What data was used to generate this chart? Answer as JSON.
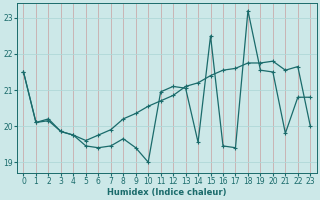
{
  "xlabel": "Humidex (Indice chaleur)",
  "xlim": [
    -0.5,
    23.5
  ],
  "ylim": [
    18.7,
    23.4
  ],
  "yticks": [
    19,
    20,
    21,
    22,
    23
  ],
  "xticks": [
    0,
    1,
    2,
    3,
    4,
    5,
    6,
    7,
    8,
    9,
    10,
    11,
    12,
    13,
    14,
    15,
    16,
    17,
    18,
    19,
    20,
    21,
    22,
    23
  ],
  "bg_color": "#cce8e8",
  "line_color": "#1a6b6b",
  "grid_color": "#b0d8d8",
  "line1_x": [
    0,
    1,
    2,
    3,
    4,
    5,
    6,
    7,
    8,
    9,
    10,
    11,
    12,
    13,
    14,
    15,
    16,
    17,
    18,
    19,
    20,
    21,
    22,
    23
  ],
  "line1_y": [
    21.5,
    20.1,
    20.2,
    19.85,
    19.75,
    19.45,
    19.4,
    19.45,
    19.65,
    19.4,
    19.0,
    20.95,
    21.1,
    21.05,
    19.55,
    22.5,
    19.45,
    19.4,
    23.2,
    21.55,
    21.5,
    19.8,
    20.8,
    20.8
  ],
  "line2_x": [
    0,
    1,
    2,
    3,
    4,
    5,
    6,
    7,
    8,
    9,
    10,
    11,
    12,
    13,
    14,
    15,
    16,
    17,
    18,
    19,
    20,
    21,
    22,
    23
  ],
  "line2_y": [
    21.5,
    20.1,
    20.15,
    19.85,
    19.75,
    19.6,
    19.75,
    19.9,
    20.2,
    20.35,
    20.55,
    20.7,
    20.85,
    21.1,
    21.2,
    21.4,
    21.55,
    21.6,
    21.75,
    21.75,
    21.8,
    21.55,
    21.65,
    20.0
  ]
}
